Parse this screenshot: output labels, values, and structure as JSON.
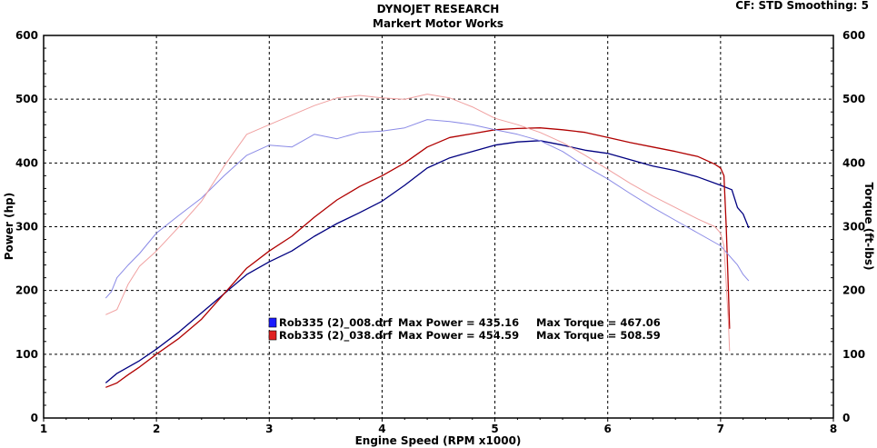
{
  "header": {
    "title": "DYNOJET RESEARCH",
    "subtitle": "Markert Motor Works",
    "settings": "CF: STD  Smoothing: 5"
  },
  "chart_data": {
    "type": "line",
    "title": "DYNOJET RESEARCH",
    "subtitle": "Markert Motor Works",
    "xlabel": "Engine Speed (RPM x1000)",
    "ylabel_left": "Power (hp)",
    "ylabel_right": "Torque (ft-lbs)",
    "xlim": [
      1,
      8
    ],
    "ylim_left": [
      0,
      600
    ],
    "ylim_right": [
      0,
      600
    ],
    "x_ticks": [
      "1",
      "2",
      "3",
      "4",
      "5",
      "6",
      "7",
      "8"
    ],
    "y_ticks_left": [
      "0",
      "100",
      "200",
      "300",
      "400",
      "500",
      "600"
    ],
    "y_ticks_right": [
      "0",
      "100",
      "200",
      "300",
      "400",
      "500",
      "600"
    ],
    "grid": true,
    "legend": [
      {
        "file": "Rob335 (2)_008.drf",
        "max_power_label": "Max Power = 435.16",
        "max_torque_label": "Max Torque = 467.06",
        "color": "#1a1aff"
      },
      {
        "file": "Rob335 (2)_038.drf",
        "max_power_label": "Max Power = 454.59",
        "max_torque_label": "Max Torque = 508.59",
        "color": "#e02020"
      }
    ],
    "series": [
      {
        "run": "008",
        "measure": "power",
        "color": "#000080",
        "width": 1.3,
        "x": [
          1.55,
          1.65,
          1.75,
          1.85,
          2.0,
          2.2,
          2.4,
          2.6,
          2.8,
          3.0,
          3.2,
          3.4,
          3.6,
          3.8,
          4.0,
          4.2,
          4.4,
          4.6,
          4.8,
          5.0,
          5.2,
          5.4,
          5.6,
          5.8,
          6.0,
          6.2,
          6.4,
          6.6,
          6.8,
          7.0,
          7.1,
          7.15,
          7.2,
          7.25
        ],
        "y": [
          55,
          70,
          80,
          90,
          108,
          135,
          165,
          195,
          225,
          245,
          262,
          285,
          305,
          322,
          340,
          365,
          392,
          408,
          418,
          428,
          433,
          435,
          428,
          420,
          415,
          405,
          395,
          388,
          378,
          365,
          358,
          330,
          320,
          298
        ]
      },
      {
        "run": "038",
        "measure": "power",
        "color": "#b00000",
        "width": 1.3,
        "x": [
          1.55,
          1.65,
          1.75,
          1.85,
          2.0,
          2.2,
          2.4,
          2.6,
          2.8,
          3.0,
          3.2,
          3.4,
          3.6,
          3.8,
          4.0,
          4.2,
          4.4,
          4.6,
          4.8,
          5.0,
          5.2,
          5.4,
          5.6,
          5.8,
          6.0,
          6.2,
          6.4,
          6.6,
          6.8,
          6.95,
          7.0,
          7.03,
          7.05,
          7.07,
          7.08
        ],
        "y": [
          48,
          55,
          68,
          80,
          100,
          125,
          155,
          195,
          235,
          262,
          285,
          315,
          342,
          363,
          380,
          400,
          425,
          440,
          446,
          452,
          454,
          455,
          452,
          448,
          440,
          432,
          425,
          418,
          410,
          398,
          392,
          380,
          300,
          200,
          140
        ]
      },
      {
        "run": "008",
        "measure": "torque",
        "color": "#8a8ae6",
        "width": 1,
        "x": [
          1.55,
          1.6,
          1.65,
          1.75,
          1.85,
          2.0,
          2.2,
          2.4,
          2.6,
          2.8,
          3.0,
          3.2,
          3.4,
          3.6,
          3.8,
          4.0,
          4.2,
          4.4,
          4.6,
          4.8,
          5.0,
          5.2,
          5.4,
          5.6,
          5.8,
          6.0,
          6.2,
          6.4,
          6.6,
          6.8,
          7.0,
          7.1,
          7.15,
          7.2,
          7.25
        ],
        "y": [
          188,
          198,
          220,
          240,
          258,
          290,
          318,
          345,
          380,
          412,
          428,
          425,
          445,
          438,
          448,
          450,
          455,
          468,
          465,
          460,
          452,
          445,
          435,
          418,
          395,
          375,
          352,
          330,
          310,
          290,
          270,
          250,
          240,
          225,
          215
        ]
      },
      {
        "run": "038",
        "measure": "torque",
        "color": "#f0a0a0",
        "width": 1,
        "x": [
          1.55,
          1.65,
          1.75,
          1.85,
          2.0,
          2.2,
          2.4,
          2.6,
          2.8,
          3.0,
          3.2,
          3.4,
          3.6,
          3.8,
          4.0,
          4.2,
          4.4,
          4.6,
          4.8,
          5.0,
          5.2,
          5.4,
          5.6,
          5.8,
          6.0,
          6.2,
          6.4,
          6.6,
          6.8,
          6.95,
          7.0,
          7.03,
          7.05,
          7.07,
          7.08
        ],
        "y": [
          162,
          170,
          210,
          238,
          262,
          300,
          340,
          395,
          445,
          460,
          475,
          490,
          502,
          506,
          502,
          500,
          508,
          502,
          488,
          470,
          460,
          448,
          432,
          412,
          390,
          368,
          348,
          330,
          312,
          300,
          290,
          270,
          210,
          150,
          105
        ]
      }
    ]
  }
}
